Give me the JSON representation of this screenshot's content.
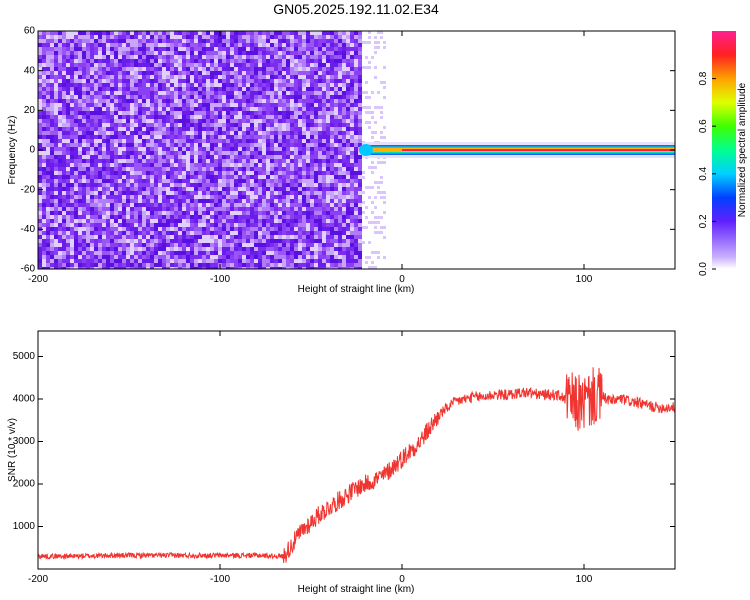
{
  "title": "GN05.2025.192.11.02.E34",
  "chart_data": [
    {
      "type": "heatmap",
      "xlabel": "Height of straight line (km)",
      "ylabel": "Frequency (Hz)",
      "xlim": [
        -200,
        150
      ],
      "ylim": [
        -60,
        60
      ],
      "xticks": [
        -200,
        -100,
        0,
        100
      ],
      "yticks": [
        -60,
        -40,
        -20,
        0,
        20,
        40,
        60
      ],
      "noise_region_x": [
        -200,
        -22
      ],
      "signal_band": {
        "x_start": -22,
        "x_end": 150,
        "frequency": 0
      },
      "colorbar": {
        "label": "Normalized spectral amplitude",
        "range": [
          0.0,
          1.0
        ],
        "ticks": [
          "0.0",
          "0.2",
          "0.4",
          "0.6",
          "0.8"
        ]
      }
    },
    {
      "type": "line",
      "xlabel": "Height of straight line (km)",
      "ylabel": "SNR (10 * v/v)",
      "xlim": [
        -200,
        150
      ],
      "ylim": [
        0,
        5600
      ],
      "xticks": [
        -200,
        -100,
        0,
        100
      ],
      "yticks": [
        1000,
        2000,
        3000,
        4000,
        5000
      ],
      "color": "#f03530",
      "series": [
        {
          "x": [
            -200,
            -180,
            -160,
            -140,
            -120,
            -100,
            -80,
            -65,
            -60,
            -55,
            -50,
            -45,
            -40,
            -35,
            -30,
            -25,
            -20,
            -15,
            -10,
            -5,
            0,
            5,
            10,
            15,
            20,
            25,
            30,
            35,
            40,
            45,
            50,
            55,
            60,
            65,
            70,
            75,
            80,
            85,
            90,
            95,
            100,
            105,
            110,
            115,
            120,
            125,
            130,
            135,
            140,
            145,
            150
          ],
          "y": [
            300,
            300,
            320,
            320,
            320,
            320,
            320,
            300,
            600,
            900,
            1100,
            1300,
            1450,
            1600,
            1750,
            1900,
            2000,
            2100,
            2200,
            2400,
            2600,
            2800,
            3000,
            3300,
            3600,
            3800,
            3950,
            4000,
            4050,
            4050,
            4100,
            4100,
            4100,
            4150,
            4150,
            4100,
            4100,
            4100,
            4000,
            3900,
            3900,
            4050,
            4050,
            3950,
            4000,
            3950,
            3900,
            3850,
            3800,
            3800,
            3800
          ]
        }
      ]
    }
  ]
}
